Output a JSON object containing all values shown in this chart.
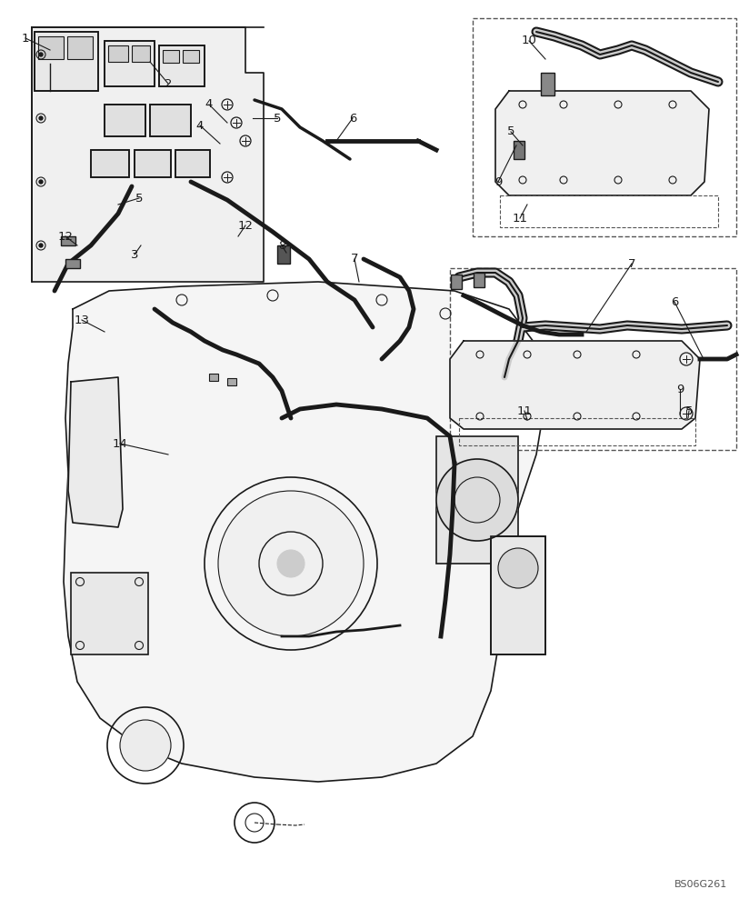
{
  "title": "",
  "background_color": "#ffffff",
  "line_color": "#1a1a1a",
  "label_color": "#1a1a1a",
  "ref_number": "BS06G261",
  "figsize": [
    8.24,
    10.0
  ],
  "dpi": 100
}
